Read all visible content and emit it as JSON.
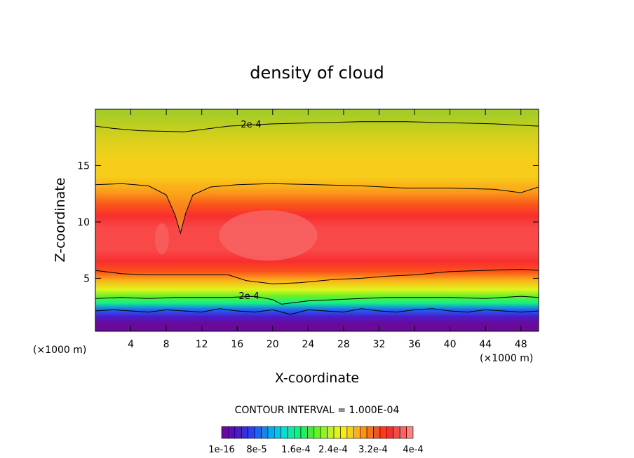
{
  "chart_data": {
    "type": "heatmap",
    "title": "density of cloud",
    "xlabel": "X-coordinate",
    "ylabel": "Z-coordinate",
    "x_unit_left": "(×1000 m)",
    "x_unit_right": "(×1000 m)",
    "xlim": [
      0,
      50
    ],
    "ylim": [
      0.3,
      20
    ],
    "x_ticks": [
      4,
      8,
      12,
      16,
      20,
      24,
      28,
      32,
      36,
      40,
      44,
      48
    ],
    "y_ticks": [
      5,
      10,
      15
    ],
    "contour_interval_text": "CONTOUR INTERVAL = 1.000E-04",
    "contour_line_labels": [
      "2e-4",
      "2e-4"
    ],
    "colorbar": {
      "labels": [
        "1e-16",
        "8e-5",
        "1.6e-4",
        "2.4e-4",
        "3.2e-4",
        "4e-4"
      ],
      "colors": [
        "#6a0a9a",
        "#5a0fb4",
        "#4a1ccc",
        "#3a2ae0",
        "#2a44ec",
        "#1e64f2",
        "#1486f4",
        "#0aaaf0",
        "#06c6e6",
        "#08ddd0",
        "#0aeab0",
        "#12f08a",
        "#22ee60",
        "#40ee38",
        "#68f028",
        "#92f224",
        "#bcf420",
        "#e0f41c",
        "#f6ec1c",
        "#f8d01a",
        "#fab21a",
        "#fa921a",
        "#fa721a",
        "#fa521a",
        "#f83a1e",
        "#f82e2e",
        "#f84848",
        "#f86464",
        "#f88484"
      ]
    },
    "profile": {
      "z": [
        1.0,
        1.6,
        2.2,
        2.8,
        3.4,
        4.0,
        4.8,
        5.6,
        6.5,
        7.5,
        8.5,
        9.5,
        10.5,
        11.5,
        12.5,
        13.2,
        14.0,
        15.0,
        16.0,
        17.0,
        18.0,
        18.8,
        19.5
      ],
      "value": [
        1e-05,
        3e-05,
        8e-05,
        0.00016,
        0.0002,
        0.00024,
        0.00028,
        0.00032,
        0.00035,
        0.00036,
        0.00037,
        0.00036,
        0.00035,
        0.00033,
        0.0003,
        0.00028,
        0.00026,
        0.00025,
        0.00024,
        0.00023,
        0.00021,
        0.0002,
        0.00019
      ]
    },
    "contours": [
      {
        "level": 0.0002,
        "x": [
          0,
          2,
          5,
          10,
          15,
          20,
          25,
          30,
          35,
          40,
          45,
          50
        ],
        "z": [
          18.5,
          18.3,
          18.1,
          18.0,
          18.5,
          18.7,
          18.8,
          18.9,
          18.9,
          18.8,
          18.7,
          18.5
        ]
      },
      {
        "level": 0.0003,
        "x": [
          0,
          3,
          6,
          8,
          9,
          9.6,
          10.2,
          11,
          13,
          16,
          20,
          25,
          30,
          35,
          40,
          45,
          48,
          50
        ],
        "z": [
          13.3,
          13.4,
          13.2,
          12.4,
          10.6,
          9.0,
          10.8,
          12.4,
          13.1,
          13.3,
          13.4,
          13.3,
          13.2,
          13.0,
          13.0,
          12.9,
          12.6,
          13.1
        ]
      },
      {
        "level": 0.0003,
        "x": [
          0,
          3,
          6,
          10,
          13,
          15,
          17,
          20,
          23,
          27,
          30,
          33,
          36,
          40,
          44,
          48,
          50
        ],
        "z": [
          5.7,
          5.4,
          5.3,
          5.3,
          5.3,
          5.3,
          4.8,
          4.5,
          4.6,
          4.9,
          5.0,
          5.2,
          5.3,
          5.6,
          5.7,
          5.8,
          5.7
        ]
      },
      {
        "level": 0.0002,
        "x": [
          0,
          3,
          6,
          9,
          12,
          15,
          18,
          20,
          21,
          22,
          24,
          27,
          30,
          33,
          36,
          40,
          44,
          48,
          50
        ],
        "z": [
          3.2,
          3.3,
          3.2,
          3.3,
          3.3,
          3.3,
          3.4,
          3.1,
          2.7,
          2.8,
          3.0,
          3.1,
          3.2,
          3.3,
          3.3,
          3.3,
          3.2,
          3.4,
          3.3
        ]
      },
      {
        "level": 0.0001,
        "x": [
          0,
          2,
          4,
          6,
          8,
          10,
          12,
          14,
          16,
          18,
          20,
          22,
          24,
          26,
          28,
          30,
          32,
          34,
          36,
          38,
          40,
          42,
          44,
          46,
          48,
          50
        ],
        "z": [
          2.1,
          2.2,
          2.1,
          2.0,
          2.2,
          2.1,
          2.0,
          2.3,
          2.1,
          2.0,
          2.2,
          1.8,
          2.2,
          2.1,
          2.0,
          2.3,
          2.1,
          2.0,
          2.2,
          2.3,
          2.1,
          2.0,
          2.2,
          2.1,
          2.0,
          2.1
        ]
      }
    ]
  }
}
